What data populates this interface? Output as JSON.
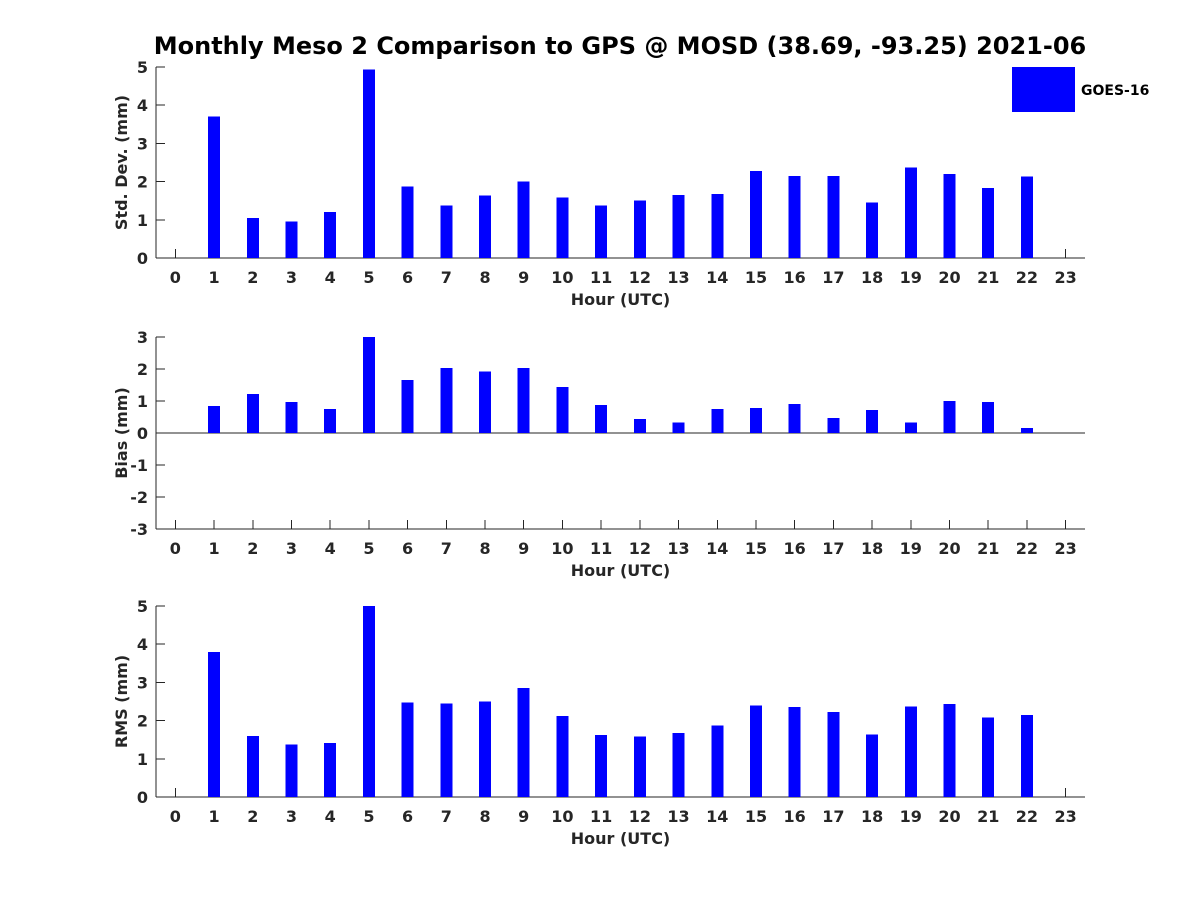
{
  "chart_data": {
    "title": "Monthly Meso 2 Comparison to GPS @ MOSD (38.69, -93.25) 2021-06",
    "type": "bar",
    "bar_color": "#0000ff",
    "legend": {
      "entries": [
        "GOES-16"
      ],
      "placement": "top-right"
    },
    "panels": [
      {
        "id": "stddev",
        "type": "bar",
        "xlabel": "Hour (UTC)",
        "ylabel": "Std. Dev. (mm)",
        "ylim": [
          0,
          5
        ],
        "yticks": [
          0,
          1,
          2,
          3,
          4,
          5
        ],
        "categories": [
          0,
          1,
          2,
          3,
          4,
          5,
          6,
          7,
          8,
          9,
          10,
          11,
          12,
          13,
          14,
          15,
          16,
          17,
          18,
          19,
          20,
          21,
          22,
          23
        ],
        "series": [
          {
            "name": "GOES-16",
            "values": [
              null,
              3.7,
              1.05,
              0.95,
              1.2,
              4.93,
              1.87,
              1.37,
              1.63,
              2.0,
              1.58,
              1.37,
              1.5,
              1.65,
              1.68,
              2.28,
              2.15,
              2.15,
              1.45,
              2.37,
              2.2,
              1.83,
              2.13,
              null
            ]
          }
        ]
      },
      {
        "id": "bias",
        "type": "bar",
        "xlabel": "Hour (UTC)",
        "ylabel": "Bias (mm)",
        "ylim": [
          -3,
          3
        ],
        "yticks": [
          -3,
          -2,
          -1,
          0,
          1,
          2,
          3
        ],
        "zero_line": true,
        "categories": [
          0,
          1,
          2,
          3,
          4,
          5,
          6,
          7,
          8,
          9,
          10,
          11,
          12,
          13,
          14,
          15,
          16,
          17,
          18,
          19,
          20,
          21,
          22,
          23
        ],
        "series": [
          {
            "name": "GOES-16",
            "values": [
              null,
              0.85,
              1.22,
              0.97,
              0.75,
              3.0,
              1.65,
              2.03,
              1.92,
              2.03,
              1.43,
              0.88,
              0.43,
              0.33,
              0.75,
              0.78,
              0.9,
              0.47,
              0.72,
              0.33,
              1.0,
              0.97,
              0.15,
              null
            ]
          }
        ]
      },
      {
        "id": "rms",
        "type": "bar",
        "xlabel": "Hour (UTC)",
        "ylabel": "RMS (mm)",
        "ylim": [
          0,
          5
        ],
        "yticks": [
          0,
          1,
          2,
          3,
          4,
          5
        ],
        "categories": [
          0,
          1,
          2,
          3,
          4,
          5,
          6,
          7,
          8,
          9,
          10,
          11,
          12,
          13,
          14,
          15,
          16,
          17,
          18,
          19,
          20,
          21,
          22,
          23
        ],
        "series": [
          {
            "name": "GOES-16",
            "values": [
              null,
              3.8,
              1.6,
              1.37,
              1.42,
              5.0,
              2.48,
              2.45,
              2.5,
              2.85,
              2.12,
              1.62,
              1.58,
              1.67,
              1.87,
              2.4,
              2.35,
              2.22,
              1.63,
              2.37,
              2.43,
              2.08,
              2.15,
              null
            ]
          }
        ]
      }
    ]
  }
}
